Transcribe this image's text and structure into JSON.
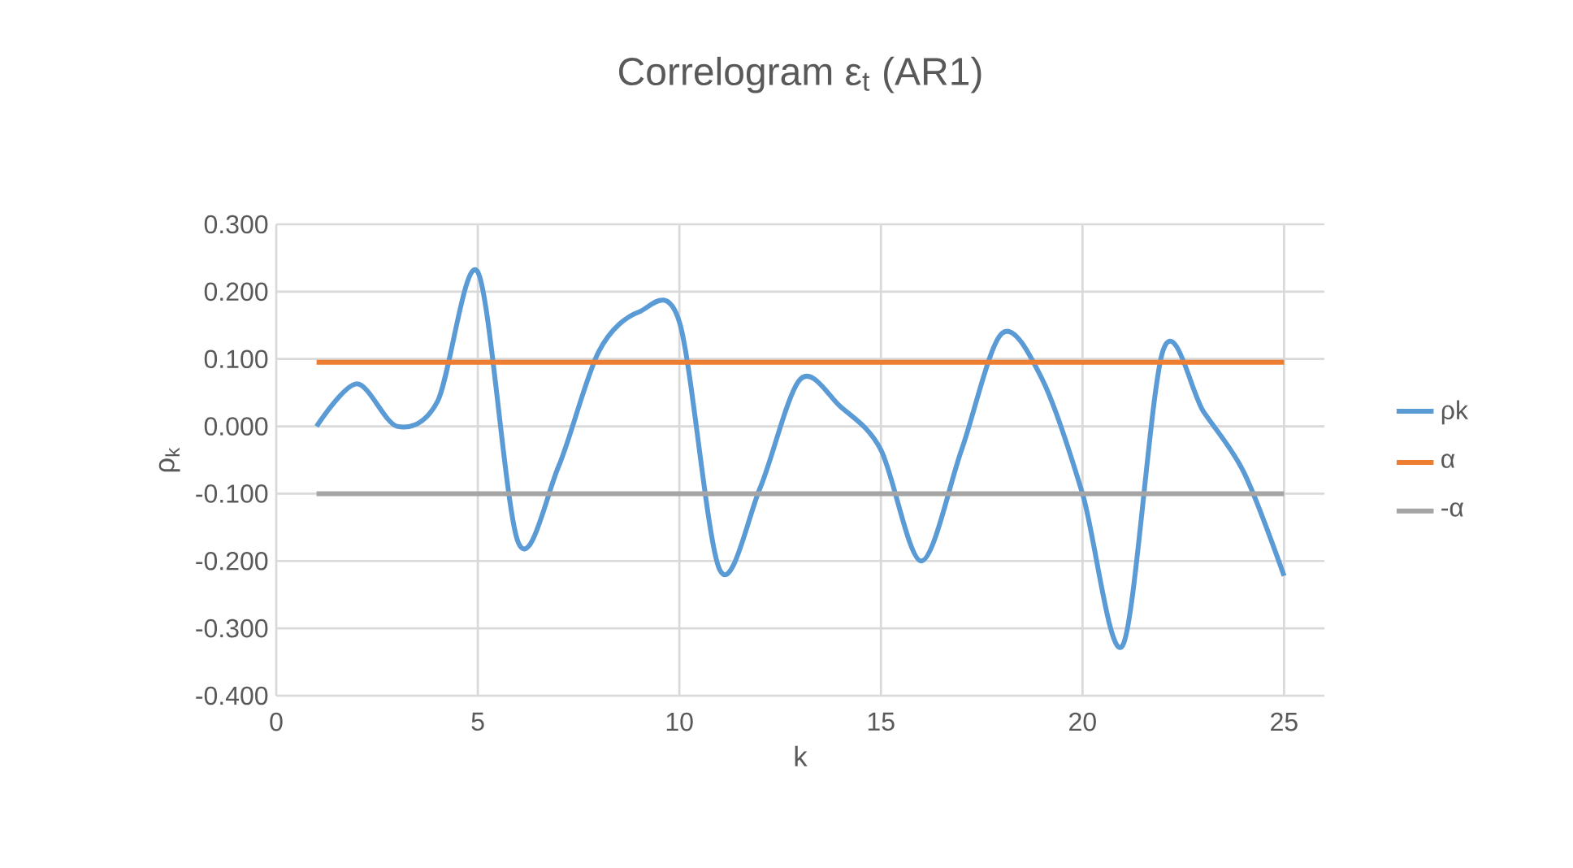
{
  "chart_data": {
    "type": "line",
    "title": "Correlogram ε$_{t}$  (AR1)",
    "xlabel": "k",
    "ylabel": "ρ$_{k}$",
    "series": [
      {
        "name": "ρk",
        "color": "#5b9bd5",
        "x": [
          1,
          2,
          3,
          4,
          5,
          6,
          7,
          8,
          9,
          10,
          11,
          12,
          13,
          14,
          15,
          16,
          17,
          18,
          19,
          20,
          21,
          22,
          23,
          24,
          25
        ],
        "values": [
          0.0,
          0.063,
          0.0,
          0.037,
          0.229,
          -0.172,
          -0.06,
          0.111,
          0.17,
          0.155,
          -0.213,
          -0.092,
          0.07,
          0.029,
          -0.035,
          -0.2,
          -0.035,
          0.138,
          0.07,
          -0.1,
          -0.325,
          0.113,
          0.022,
          -0.068,
          -0.222
        ]
      },
      {
        "name": "α",
        "color": "#ed7d31",
        "x": [
          1,
          25
        ],
        "values": [
          0.095,
          0.095
        ]
      },
      {
        "name": "-α",
        "color": "#a5a5a5",
        "x": [
          1,
          25
        ],
        "values": [
          -0.1,
          -0.1
        ]
      }
    ],
    "xlim": [
      0,
      26
    ],
    "ylim": [
      -0.4,
      0.3
    ],
    "xticks": [
      0,
      5,
      10,
      15,
      20,
      25
    ],
    "yticks": [
      {
        "value": -0.4,
        "label": "-0.400"
      },
      {
        "value": -0.3,
        "label": "-0.300"
      },
      {
        "value": -0.2,
        "label": "-0.200"
      },
      {
        "value": -0.1,
        "label": "-0.100"
      },
      {
        "value": 0,
        "label": "0.000"
      },
      {
        "value": 0.1,
        "label": "0.100"
      },
      {
        "value": 0.2,
        "label": "0.200"
      },
      {
        "value": 0.3,
        "label": "0.300"
      }
    ],
    "grid": true,
    "legend": "right",
    "marker": "none",
    "line_style": "solid"
  }
}
